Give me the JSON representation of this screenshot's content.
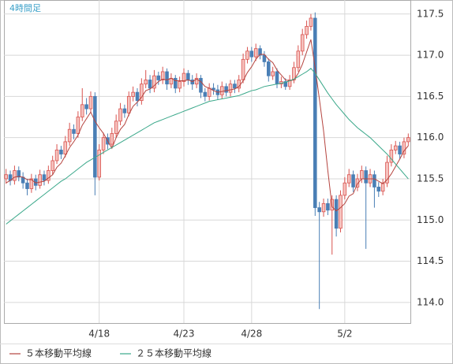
{
  "chart_data": {
    "type": "candlestick",
    "title": "4時間足",
    "categories": [
      null,
      null,
      null,
      null,
      null,
      null,
      null,
      null,
      null,
      null,
      null,
      null,
      null,
      null,
      null,
      null,
      null,
      null,
      null,
      null,
      null,
      null,
      "4/18",
      null,
      null,
      null,
      null,
      null,
      null,
      null,
      null,
      null,
      null,
      null,
      null,
      null,
      null,
      null,
      null,
      null,
      null,
      null,
      "4/23",
      null,
      null,
      null,
      null,
      null,
      null,
      null,
      null,
      null,
      null,
      null,
      null,
      null,
      null,
      null,
      "4/28",
      null,
      null,
      null,
      null,
      null,
      null,
      null,
      null,
      null,
      null,
      null,
      null,
      null,
      null,
      null,
      null,
      null,
      null,
      null,
      null,
      null,
      "5/2",
      null,
      null,
      null,
      null,
      null,
      null,
      null,
      null,
      null,
      null,
      null,
      null,
      null,
      null,
      null
    ],
    "open": [
      115.5,
      115.55,
      115.48,
      115.6,
      115.52,
      115.45,
      115.38,
      115.5,
      115.42,
      115.55,
      115.48,
      115.6,
      115.72,
      115.85,
      115.8,
      115.95,
      116.1,
      116.05,
      116.25,
      116.4,
      116.35,
      116.5,
      115.52,
      115.85,
      116.0,
      115.92,
      116.05,
      116.2,
      116.35,
      116.3,
      116.5,
      116.55,
      116.45,
      116.65,
      116.7,
      116.6,
      116.75,
      116.7,
      116.8,
      116.65,
      116.72,
      116.6,
      116.68,
      116.78,
      116.7,
      116.65,
      116.72,
      116.55,
      116.5,
      116.6,
      116.58,
      116.52,
      116.62,
      116.55,
      116.65,
      116.6,
      116.7,
      116.95,
      117.05,
      116.98,
      117.08,
      117.0,
      116.92,
      116.75,
      116.8,
      116.65,
      116.68,
      116.62,
      116.7,
      116.85,
      117.05,
      117.25,
      117.35,
      117.45,
      115.15,
      115.1,
      115.2,
      115.12,
      115.25,
      114.9,
      115.3,
      115.45,
      115.55,
      115.4,
      115.5,
      115.6,
      115.45,
      115.55,
      115.4,
      115.35,
      115.45,
      115.7,
      115.85,
      115.9,
      115.8,
      115.95
    ],
    "high": [
      115.62,
      115.6,
      115.66,
      115.65,
      115.58,
      115.5,
      115.56,
      115.55,
      115.61,
      115.6,
      115.66,
      115.78,
      115.92,
      115.9,
      116.02,
      116.18,
      116.16,
      116.32,
      116.6,
      116.48,
      116.56,
      116.55,
      115.92,
      116.06,
      116.05,
      116.12,
      116.28,
      116.42,
      116.4,
      116.56,
      116.62,
      116.6,
      116.72,
      116.82,
      116.76,
      116.82,
      116.8,
      116.86,
      116.84,
      116.78,
      116.76,
      116.74,
      116.84,
      116.82,
      116.76,
      116.78,
      116.76,
      116.6,
      116.66,
      116.66,
      116.64,
      116.68,
      116.66,
      116.7,
      116.7,
      116.76,
      117.02,
      117.1,
      117.1,
      117.14,
      117.12,
      117.05,
      116.96,
      116.86,
      116.84,
      116.74,
      116.72,
      116.76,
      116.92,
      117.12,
      117.32,
      117.42,
      117.5,
      117.52,
      115.22,
      115.26,
      115.26,
      115.3,
      115.3,
      115.36,
      115.52,
      115.62,
      115.6,
      115.56,
      115.66,
      115.65,
      115.62,
      115.6,
      115.46,
      115.5,
      115.78,
      115.92,
      115.96,
      115.95,
      116.0,
      116.05
    ],
    "low": [
      115.44,
      115.42,
      115.43,
      115.47,
      115.38,
      115.3,
      115.33,
      115.36,
      115.38,
      115.42,
      115.44,
      115.55,
      115.68,
      115.74,
      115.76,
      115.9,
      115.98,
      116.0,
      116.2,
      116.28,
      116.3,
      115.3,
      115.48,
      115.8,
      115.86,
      115.88,
      116.0,
      116.15,
      116.24,
      116.26,
      116.44,
      116.38,
      116.4,
      116.6,
      116.54,
      116.55,
      116.64,
      116.65,
      116.58,
      116.6,
      116.54,
      116.55,
      116.62,
      116.64,
      116.58,
      116.6,
      116.48,
      116.44,
      116.45,
      116.52,
      116.46,
      116.47,
      116.5,
      116.5,
      116.54,
      116.55,
      116.66,
      116.9,
      116.92,
      116.93,
      116.95,
      116.86,
      116.68,
      116.7,
      116.6,
      116.6,
      116.58,
      116.58,
      116.66,
      116.8,
      117.0,
      117.2,
      117.3,
      115.05,
      113.92,
      115.04,
      115.06,
      114.58,
      114.8,
      114.85,
      115.25,
      115.4,
      115.34,
      115.35,
      115.45,
      114.65,
      115.4,
      115.15,
      115.28,
      115.3,
      115.4,
      115.65,
      115.8,
      115.74,
      115.75,
      115.9
    ],
    "close": [
      115.55,
      115.48,
      115.6,
      115.52,
      115.45,
      115.38,
      115.5,
      115.42,
      115.55,
      115.48,
      115.6,
      115.72,
      115.85,
      115.8,
      115.95,
      116.1,
      116.05,
      116.25,
      116.4,
      116.35,
      116.5,
      115.52,
      115.85,
      116.0,
      115.92,
      116.05,
      116.2,
      116.35,
      116.3,
      116.5,
      116.55,
      116.45,
      116.65,
      116.7,
      116.6,
      116.75,
      116.7,
      116.8,
      116.65,
      116.72,
      116.6,
      116.68,
      116.78,
      116.7,
      116.65,
      116.72,
      116.55,
      116.5,
      116.6,
      116.58,
      116.52,
      116.62,
      116.55,
      116.65,
      116.6,
      116.7,
      116.95,
      117.05,
      116.98,
      117.08,
      117.0,
      116.92,
      116.75,
      116.8,
      116.65,
      116.68,
      116.62,
      116.7,
      116.85,
      117.05,
      117.25,
      117.35,
      117.45,
      115.15,
      115.1,
      115.2,
      115.12,
      115.25,
      114.9,
      115.3,
      115.45,
      115.55,
      115.4,
      115.5,
      115.6,
      115.45,
      115.55,
      115.4,
      115.35,
      115.45,
      115.7,
      115.85,
      115.9,
      115.8,
      115.95,
      116.0
    ],
    "up_color": "#d9534f",
    "up_fill": "#f6c3bf",
    "down_color": "#4a7fb5",
    "series": [
      {
        "name": "５本移動平均線",
        "color": "#b5443f",
        "values": [
          115.45,
          115.48,
          115.52,
          115.53,
          115.52,
          115.49,
          115.49,
          115.45,
          115.46,
          115.47,
          115.51,
          115.55,
          115.64,
          115.69,
          115.78,
          115.88,
          115.95,
          116.03,
          116.15,
          116.23,
          116.31,
          116.2,
          116.12,
          116.05,
          115.96,
          115.87,
          116.0,
          116.1,
          116.16,
          116.28,
          116.38,
          116.43,
          116.49,
          116.57,
          116.59,
          116.63,
          116.68,
          116.71,
          116.7,
          116.72,
          116.69,
          116.69,
          116.69,
          116.7,
          116.68,
          116.71,
          116.68,
          116.62,
          116.6,
          116.57,
          116.55,
          116.56,
          116.57,
          116.58,
          116.59,
          116.62,
          116.69,
          116.79,
          116.86,
          116.95,
          117.01,
          117.01,
          116.95,
          116.91,
          116.82,
          116.76,
          116.7,
          116.69,
          116.7,
          116.78,
          116.89,
          117.04,
          117.19,
          116.85,
          116.47,
          116.08,
          115.6,
          115.16,
          115.11,
          115.15,
          115.2,
          115.29,
          115.32,
          115.44,
          115.5,
          115.5,
          115.5,
          115.5,
          115.47,
          115.44,
          115.49,
          115.56,
          115.65,
          115.74,
          115.84,
          115.9
        ]
      },
      {
        "name": "２５本移動平均線",
        "color": "#3aa88a",
        "values": [
          114.95,
          114.99,
          115.03,
          115.07,
          115.11,
          115.15,
          115.19,
          115.23,
          115.27,
          115.31,
          115.35,
          115.39,
          115.43,
          115.47,
          115.5,
          115.54,
          115.58,
          115.62,
          115.66,
          115.7,
          115.73,
          115.76,
          115.79,
          115.82,
          115.85,
          115.88,
          115.91,
          115.94,
          115.97,
          116.0,
          116.03,
          116.06,
          116.09,
          116.12,
          116.15,
          116.18,
          116.2,
          116.22,
          116.24,
          116.26,
          116.28,
          116.3,
          116.32,
          116.34,
          116.36,
          116.38,
          116.4,
          116.42,
          116.44,
          116.45,
          116.46,
          116.47,
          116.48,
          116.49,
          116.5,
          116.51,
          116.53,
          116.55,
          116.57,
          116.58,
          116.6,
          116.62,
          116.63,
          116.64,
          116.65,
          116.66,
          116.67,
          116.69,
          116.71,
          116.74,
          116.77,
          116.8,
          116.84,
          116.78,
          116.7,
          116.62,
          116.54,
          116.47,
          116.4,
          116.34,
          116.28,
          116.22,
          116.17,
          116.12,
          116.08,
          116.04,
          116.0,
          115.95,
          115.9,
          115.85,
          115.8,
          115.74,
          115.68,
          115.62,
          115.56,
          115.5
        ]
      }
    ],
    "ylim": [
      113.75,
      117.67
    ],
    "yticks": [
      {
        "value": 114,
        "label": "114.0"
      },
      114.5,
      {
        "value": 115,
        "label": "115.0"
      },
      115.5,
      {
        "value": 116,
        "label": "116.0"
      },
      116.5,
      {
        "value": 117,
        "label": "117.0"
      },
      117.5
    ],
    "grid": true
  }
}
